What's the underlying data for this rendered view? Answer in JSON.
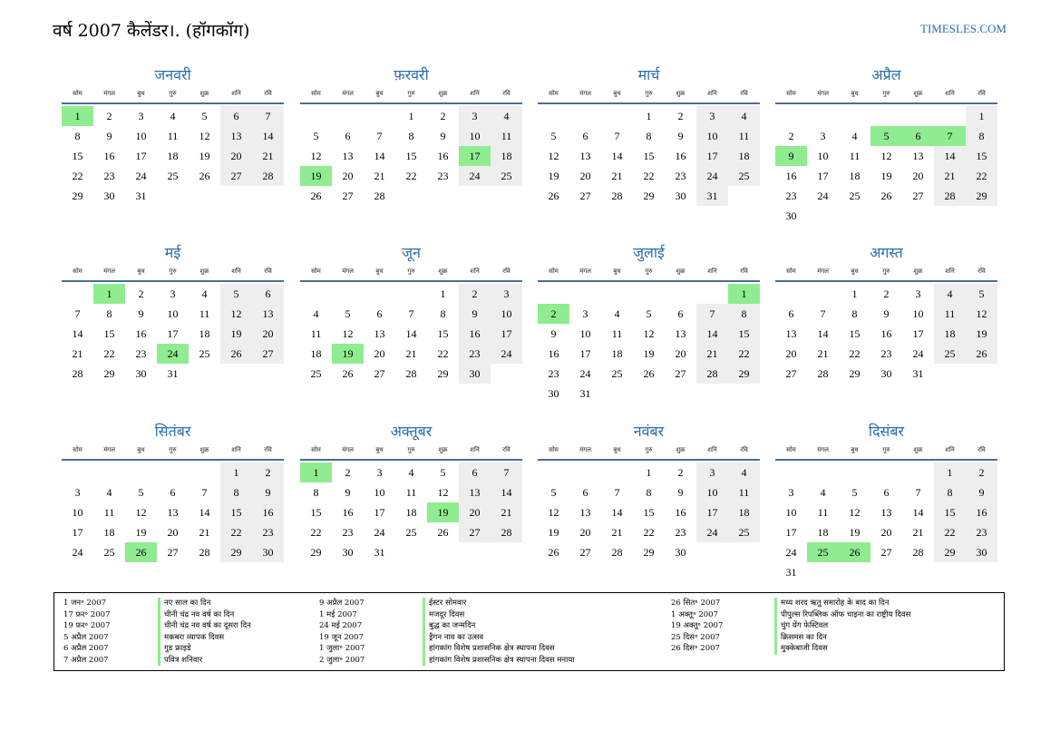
{
  "header": {
    "title": "वर्ष 2007 कैलेंडर।. (हॉगकॉग)",
    "site": "TIMESLES.COM"
  },
  "weekdays": [
    "सोम",
    "मंगल",
    "बुध",
    "गुरु",
    "शुक्र",
    "शनि",
    "रवि"
  ],
  "colors": {
    "accent": "#2a6db0",
    "holiday": "#90ec90",
    "weekend": "#eeeeee",
    "rule": "#4a6e96"
  },
  "months": [
    {
      "name": "जनवरी",
      "offset": 0,
      "days": 31,
      "holidays": [
        1
      ]
    },
    {
      "name": "फ़रवरी",
      "offset": 3,
      "days": 28,
      "holidays": [
        17,
        19
      ]
    },
    {
      "name": "मार्च",
      "offset": 3,
      "days": 31,
      "holidays": []
    },
    {
      "name": "अप्रैल",
      "offset": 6,
      "days": 30,
      "holidays": [
        5,
        6,
        7,
        9
      ]
    },
    {
      "name": "मई",
      "offset": 1,
      "days": 31,
      "holidays": [
        1,
        24
      ]
    },
    {
      "name": "जून",
      "offset": 4,
      "days": 30,
      "holidays": [
        19
      ]
    },
    {
      "name": "जुलाई",
      "offset": 6,
      "days": 31,
      "holidays": [
        1,
        2
      ]
    },
    {
      "name": "अगस्त",
      "offset": 2,
      "days": 31,
      "holidays": []
    },
    {
      "name": "सितंबर",
      "offset": 5,
      "days": 30,
      "holidays": [
        26
      ]
    },
    {
      "name": "अक्तूबर",
      "offset": 0,
      "days": 31,
      "holidays": [
        1,
        19
      ]
    },
    {
      "name": "नवंबर",
      "offset": 3,
      "days": 30,
      "holidays": []
    },
    {
      "name": "दिसंबर",
      "offset": 5,
      "days": 31,
      "holidays": [
        25,
        26
      ]
    }
  ],
  "legend": [
    [
      {
        "date": "1 जन॰ 2007",
        "name": "नए साल का दिन"
      },
      {
        "date": "17 फ़र॰ 2007",
        "name": "चीनी चंद्र नव वर्ष का दिन"
      },
      {
        "date": "19 फ़र॰ 2007",
        "name": "चीनी चंद्र नव वर्ष का दूसरा दिन"
      },
      {
        "date": "5 अप्रैल 2007",
        "name": "मकबरा व्यापक दिवस"
      },
      {
        "date": "6 अप्रैल 2007",
        "name": "गुड फ्राइडे"
      },
      {
        "date": "7 अप्रैल 2007",
        "name": "पवित्र शनिवार"
      }
    ],
    [
      {
        "date": "9 अप्रैल 2007",
        "name": "ईस्टर सोमवार"
      },
      {
        "date": "1 मई 2007",
        "name": "मजदूर दिवस"
      },
      {
        "date": "24 मई 2007",
        "name": "बुद्ध का जन्मदिन"
      },
      {
        "date": "19 जून 2007",
        "name": "ड्रैगन नाव का उत्सव"
      },
      {
        "date": "1 जुला॰ 2007",
        "name": "हांगकांग विशेष प्रशासनिक क्षेत्र स्थापना दिवस"
      },
      {
        "date": "2 जुला॰ 2007",
        "name": "हांगकांग विशेष प्रशासनिक क्षेत्र स्थापना दिवस मनाया"
      }
    ],
    [
      {
        "date": "26 सित॰ 2007",
        "name": "मध्य शरद ऋतु समारोह के बाद का दिन"
      },
      {
        "date": "1 अक्तू॰ 2007",
        "name": "पीपुल्स रिपब्लिक ऑफ चाइना का राष्ट्रीय दिवस"
      },
      {
        "date": "19 अक्तू॰ 2007",
        "name": "चुंग येंग फेस्टिवल"
      },
      {
        "date": "25 दिस॰ 2007",
        "name": "क्रिसमस का दिन"
      },
      {
        "date": "26 दिस॰ 2007",
        "name": "मुक्केबाजी दिवस"
      }
    ]
  ]
}
